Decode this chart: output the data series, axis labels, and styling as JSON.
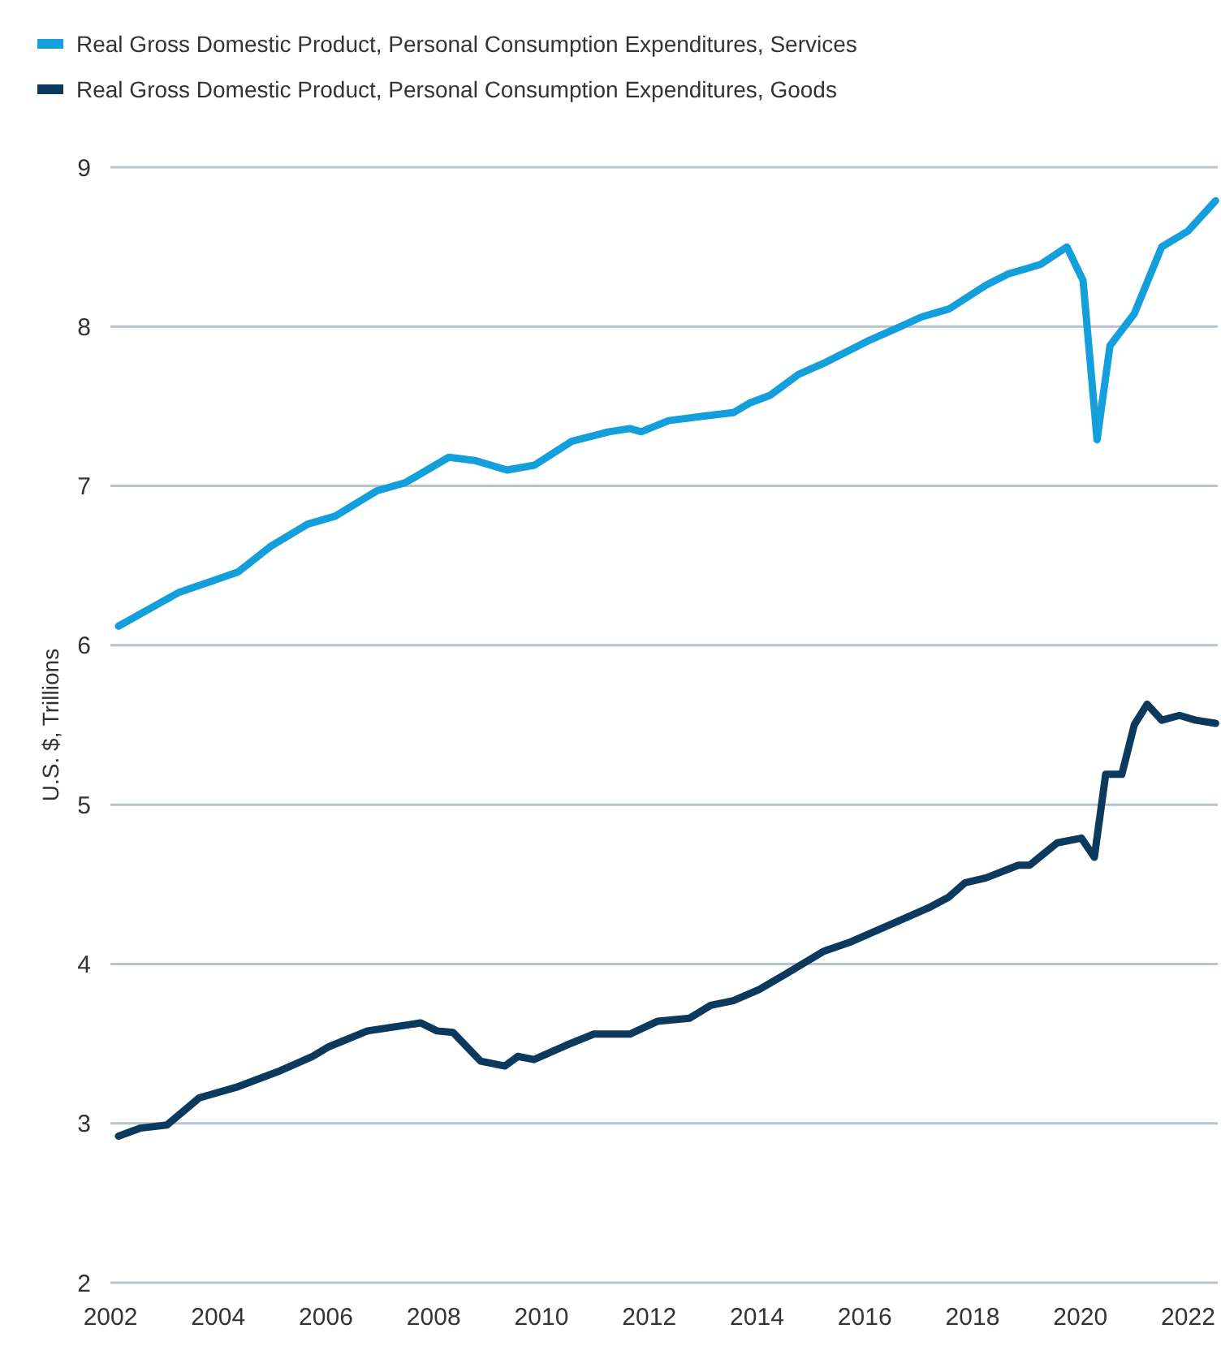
{
  "chart_data": {
    "type": "line",
    "ylabel": "U.S. $, Trillions",
    "legend": "top left",
    "grid": "y",
    "line_style": "solid",
    "marker": "none",
    "xlim": [
      2002,
      2022.55
    ],
    "xticks": [
      2002,
      2004,
      2006,
      2008,
      2010,
      2012,
      2014,
      2016,
      2018,
      2020,
      2022
    ],
    "ylim": [
      2,
      9
    ],
    "yticks": [
      2,
      3,
      4,
      5,
      6,
      7,
      8,
      9
    ],
    "series": [
      {
        "name": "Real Gross Domestic Product, Personal Consumption Expenditures, Services",
        "color": "#139fdc",
        "x": [
          2002.15,
          2003.26,
          2004.37,
          2004.97,
          2005.66,
          2006.17,
          2006.95,
          2007.47,
          2008.28,
          2008.76,
          2009.36,
          2009.87,
          2010.56,
          2011.25,
          2011.64,
          2011.85,
          2012.36,
          2013.05,
          2013.56,
          2013.86,
          2014.25,
          2014.77,
          2015.24,
          2016.06,
          2016.66,
          2017.05,
          2017.56,
          2018.25,
          2018.66,
          2019.26,
          2019.75,
          2020.05,
          2020.31,
          2020.55,
          2021.0,
          2021.51,
          2022.0,
          2022.51
        ],
        "values": [
          6.12,
          6.33,
          6.46,
          6.62,
          6.76,
          6.81,
          6.97,
          7.02,
          7.18,
          7.16,
          7.1,
          7.13,
          7.28,
          7.34,
          7.36,
          7.34,
          7.41,
          7.44,
          7.46,
          7.52,
          7.57,
          7.7,
          7.77,
          7.91,
          8.0,
          8.06,
          8.11,
          8.26,
          8.33,
          8.39,
          8.5,
          8.29,
          7.29,
          7.88,
          8.08,
          8.5,
          8.6,
          8.79
        ]
      },
      {
        "name": "Real Gross Domestic Product, Personal Consumption Expenditures, Goods",
        "color": "#0b3a5e",
        "x": [
          2002.15,
          2002.56,
          2003.05,
          2003.65,
          2004.37,
          2005.15,
          2005.75,
          2006.05,
          2006.77,
          2007.76,
          2008.06,
          2008.36,
          2008.87,
          2009.32,
          2009.56,
          2009.86,
          2010.46,
          2010.97,
          2011.24,
          2011.64,
          2012.15,
          2012.75,
          2013.14,
          2013.56,
          2014.04,
          2014.55,
          2015.24,
          2015.75,
          2016.56,
          2017.17,
          2017.56,
          2017.86,
          2018.25,
          2018.85,
          2019.06,
          2019.57,
          2020.02,
          2020.26,
          2020.47,
          2020.77,
          2021.0,
          2021.24,
          2021.51,
          2021.84,
          2022.14,
          2022.51
        ],
        "values": [
          2.92,
          2.97,
          2.99,
          3.16,
          3.23,
          3.33,
          3.42,
          3.48,
          3.58,
          3.63,
          3.58,
          3.57,
          3.39,
          3.36,
          3.42,
          3.4,
          3.49,
          3.56,
          3.56,
          3.56,
          3.64,
          3.66,
          3.74,
          3.77,
          3.84,
          3.94,
          4.08,
          4.14,
          4.26,
          4.35,
          4.42,
          4.51,
          4.54,
          4.62,
          4.62,
          4.76,
          4.79,
          4.67,
          5.19,
          5.19,
          5.5,
          5.63,
          5.53,
          5.56,
          5.53,
          5.51
        ]
      }
    ]
  }
}
